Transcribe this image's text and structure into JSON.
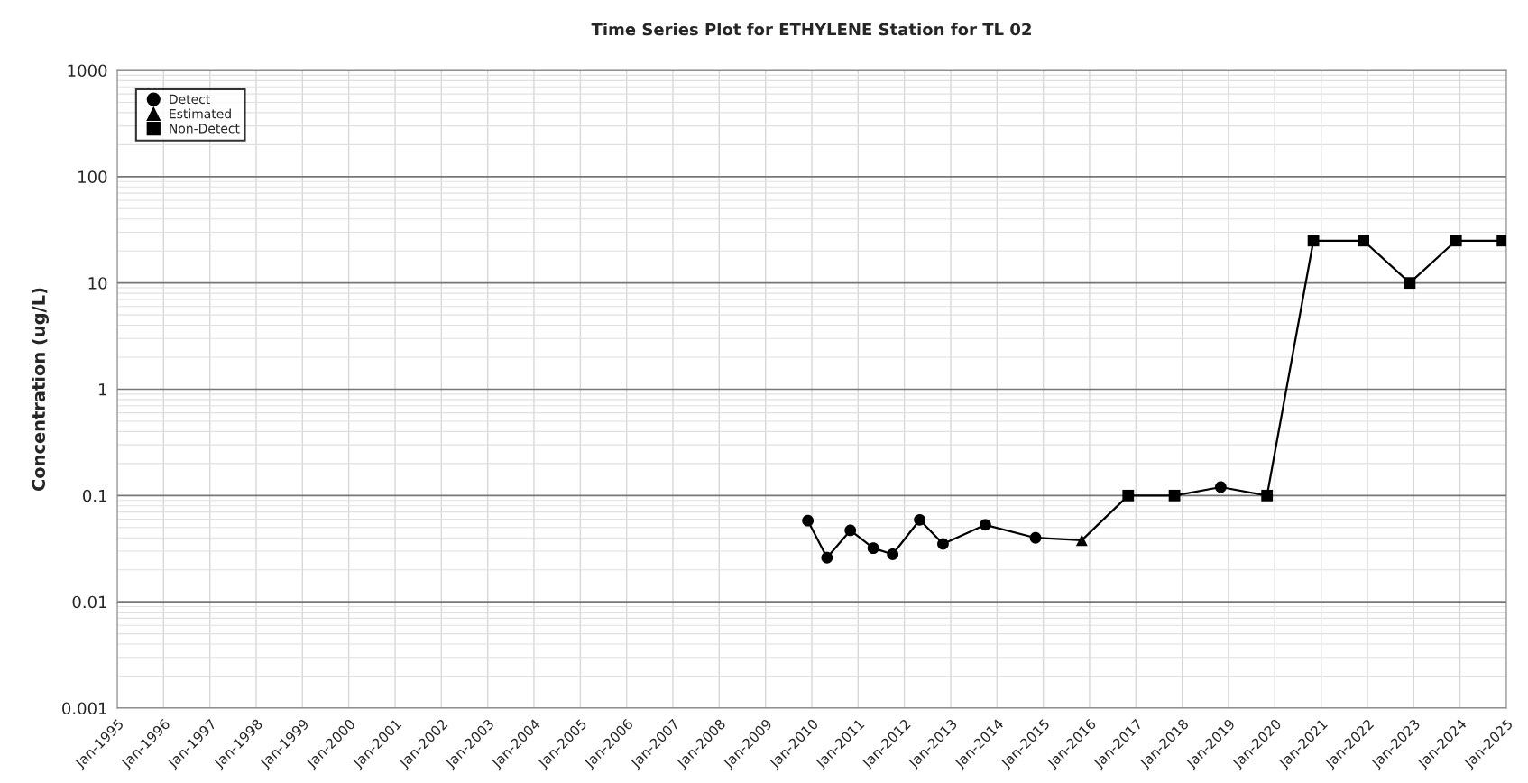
{
  "chart_data": {
    "type": "line",
    "title": "Time Series Plot for ETHYLENE Station for TL 02",
    "ylabel": "Concentration (ug/L)",
    "log": "y",
    "grid": true,
    "legend": "top left",
    "xlim": [
      "1995-01",
      "2025-01"
    ],
    "xticks": [
      {
        "value": "1995-01",
        "label": "Jan-1995"
      },
      {
        "value": "1996-01",
        "label": "Jan-1996"
      },
      {
        "value": "1997-01",
        "label": "Jan-1997"
      },
      {
        "value": "1998-01",
        "label": "Jan-1998"
      },
      {
        "value": "1999-01",
        "label": "Jan-1999"
      },
      {
        "value": "2000-01",
        "label": "Jan-2000"
      },
      {
        "value": "2001-01",
        "label": "Jan-2001"
      },
      {
        "value": "2002-01",
        "label": "Jan-2002"
      },
      {
        "value": "2003-01",
        "label": "Jan-2003"
      },
      {
        "value": "2004-01",
        "label": "Jan-2004"
      },
      {
        "value": "2005-01",
        "label": "Jan-2005"
      },
      {
        "value": "2006-01",
        "label": "Jan-2006"
      },
      {
        "value": "2007-01",
        "label": "Jan-2007"
      },
      {
        "value": "2008-01",
        "label": "Jan-2008"
      },
      {
        "value": "2009-01",
        "label": "Jan-2009"
      },
      {
        "value": "2010-01",
        "label": "Jan-2010"
      },
      {
        "value": "2011-01",
        "label": "Jan-2011"
      },
      {
        "value": "2012-01",
        "label": "Jan-2012"
      },
      {
        "value": "2013-01",
        "label": "Jan-2013"
      },
      {
        "value": "2014-01",
        "label": "Jan-2014"
      },
      {
        "value": "2015-01",
        "label": "Jan-2015"
      },
      {
        "value": "2016-01",
        "label": "Jan-2016"
      },
      {
        "value": "2017-01",
        "label": "Jan-2017"
      },
      {
        "value": "2018-01",
        "label": "Jan-2018"
      },
      {
        "value": "2019-01",
        "label": "Jan-2019"
      },
      {
        "value": "2020-01",
        "label": "Jan-2020"
      },
      {
        "value": "2021-01",
        "label": "Jan-2021"
      },
      {
        "value": "2022-01",
        "label": "Jan-2022"
      },
      {
        "value": "2023-01",
        "label": "Jan-2023"
      },
      {
        "value": "2024-01",
        "label": "Jan-2024"
      },
      {
        "value": "2025-01",
        "label": "Jan-2025"
      }
    ],
    "ylim": [
      0.001,
      1000
    ],
    "yticks": [
      0.001,
      0.01,
      0.1,
      1,
      10,
      100,
      1000
    ],
    "series": [
      {
        "color": "#000000",
        "marker": "none",
        "line_style": "solid",
        "x": [
          "2009-12",
          "2010-05",
          "2010-11",
          "2011-05",
          "2011-10",
          "2012-05",
          "2012-11",
          "2013-10",
          "2014-11",
          "2015-11",
          "2016-11",
          "2017-11",
          "2018-11",
          "2019-11",
          "2020-11",
          "2021-12",
          "2022-12",
          "2023-12",
          "2024-12"
        ],
        "values": [
          0.058,
          0.026,
          0.047,
          0.032,
          0.028,
          0.059,
          0.035,
          0.053,
          0.04,
          0.038,
          0.1,
          0.1,
          0.12,
          0.1,
          25,
          25,
          10,
          25,
          25
        ]
      },
      {
        "type": "scatter",
        "name": "Detect",
        "color": "#000000",
        "marker": "circle",
        "x": [
          "2009-12",
          "2010-05",
          "2010-11",
          "2011-05",
          "2011-10",
          "2012-05",
          "2012-11",
          "2013-10",
          "2014-11",
          "2018-11"
        ],
        "values": [
          0.058,
          0.026,
          0.047,
          0.032,
          0.028,
          0.059,
          0.035,
          0.053,
          0.04,
          0.12
        ]
      },
      {
        "type": "scatter",
        "name": "Estimated",
        "color": "#000000",
        "marker": "triangle",
        "x": [
          "2015-11"
        ],
        "values": [
          0.038
        ]
      },
      {
        "type": "scatter",
        "name": "Non-Detect",
        "color": "#000000",
        "marker": "square",
        "x": [
          "2016-11",
          "2017-11",
          "2019-11",
          "2020-11",
          "2021-12",
          "2022-12",
          "2023-12",
          "2024-12"
        ],
        "values": [
          0.1,
          0.1,
          0.1,
          25,
          25,
          10,
          25,
          25
        ]
      }
    ]
  }
}
